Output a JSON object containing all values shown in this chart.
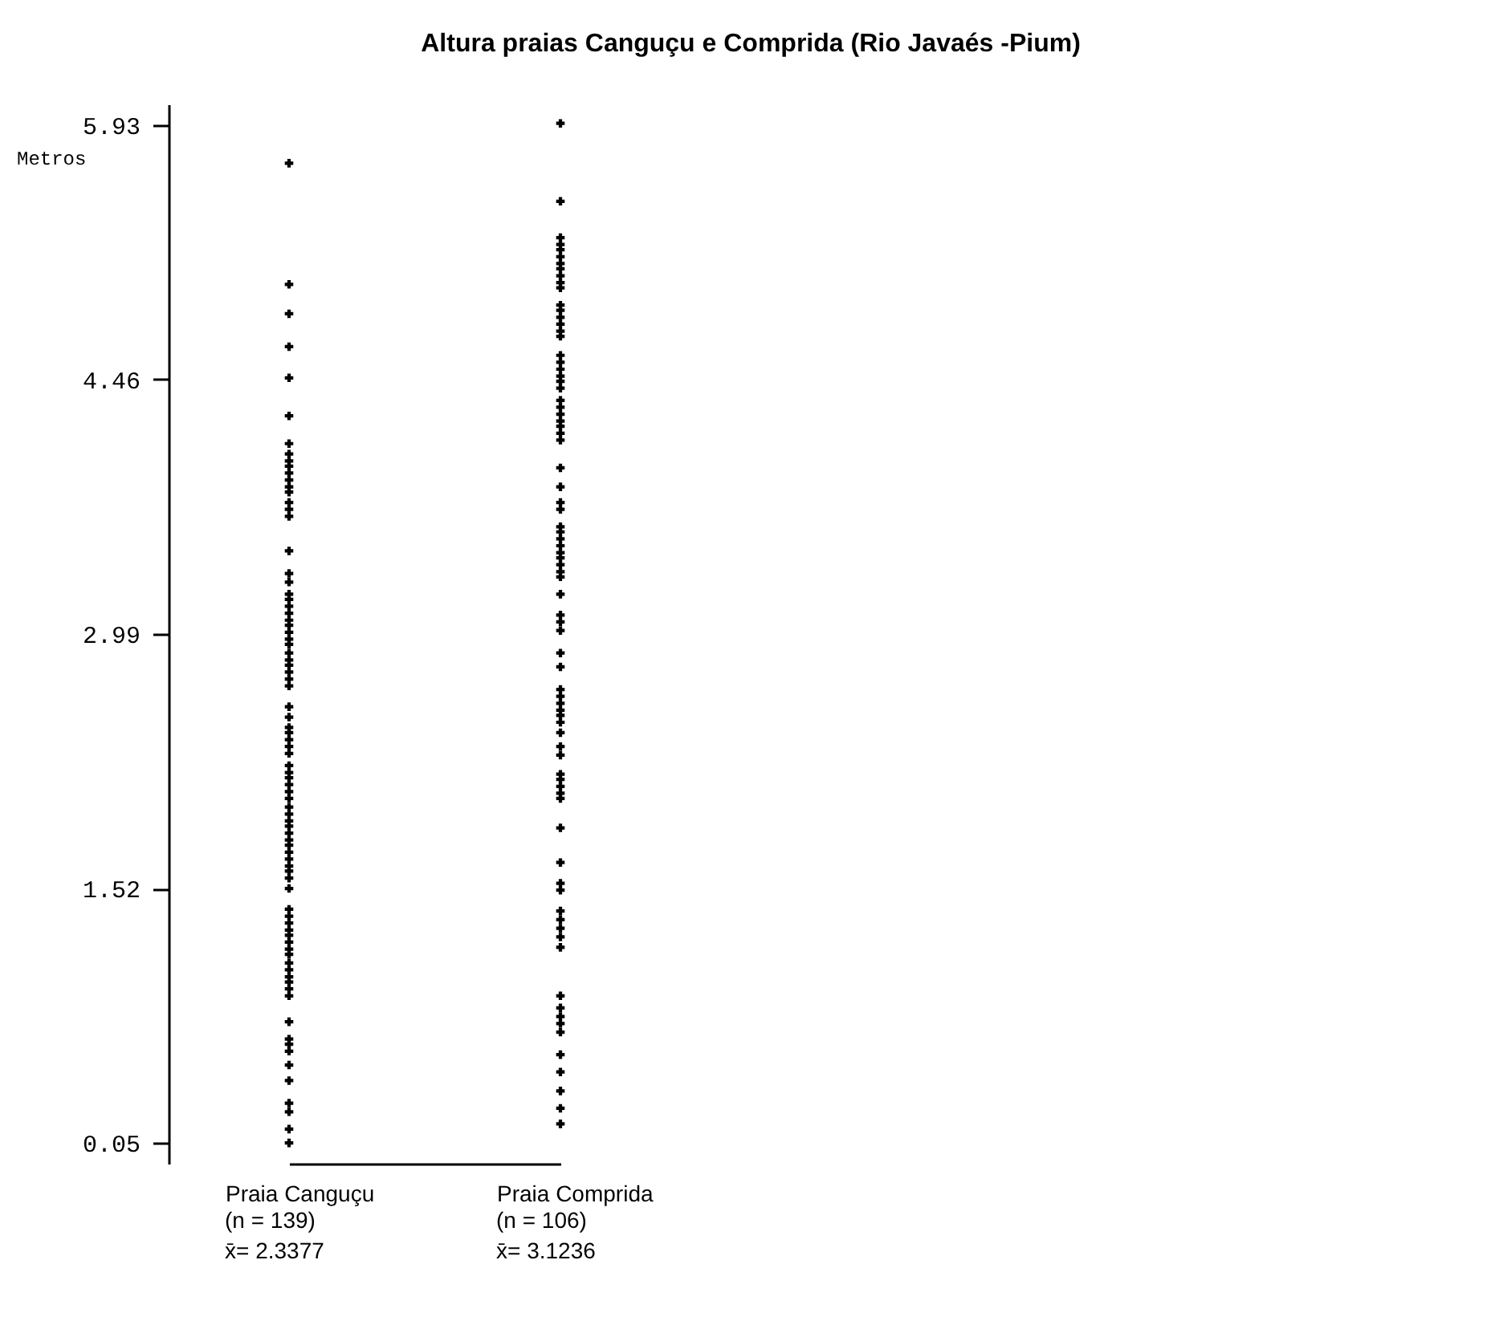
{
  "chart_data": {
    "type": "scatter",
    "title": "Altura praias Canguçu e Comprida (Rio Javaés -Pium)",
    "ylabel": "Metros",
    "categories": [
      "Praia Canguçu",
      "Praia Comprida"
    ],
    "ylim": [
      -0.07,
      6.05
    ],
    "yticks": [
      0.05,
      1.52,
      2.99,
      4.46,
      5.93
    ],
    "marker": "cross",
    "annotations": [
      "(n = 139)\nx̄= 2.3377",
      "(n = 106)\nx̄= 3.1236"
    ],
    "series": [
      {
        "color": "#000000",
        "x": [
          "Praia Canguçu",
          "Praia Canguçu",
          "Praia Canguçu",
          "Praia Canguçu",
          "Praia Canguçu",
          "Praia Canguçu",
          "Praia Canguçu",
          "Praia Canguçu",
          "Praia Canguçu",
          "Praia Canguçu",
          "Praia Canguçu",
          "Praia Canguçu",
          "Praia Canguçu",
          "Praia Canguçu",
          "Praia Canguçu",
          "Praia Canguçu",
          "Praia Canguçu",
          "Praia Canguçu",
          "Praia Canguçu",
          "Praia Canguçu",
          "Praia Canguçu",
          "Praia Canguçu",
          "Praia Canguçu",
          "Praia Canguçu",
          "Praia Canguçu",
          "Praia Canguçu",
          "Praia Canguçu",
          "Praia Canguçu",
          "Praia Canguçu",
          "Praia Canguçu",
          "Praia Canguçu",
          "Praia Canguçu",
          "Praia Canguçu",
          "Praia Canguçu",
          "Praia Canguçu",
          "Praia Canguçu",
          "Praia Canguçu",
          "Praia Canguçu",
          "Praia Canguçu",
          "Praia Canguçu",
          "Praia Canguçu",
          "Praia Canguçu",
          "Praia Canguçu",
          "Praia Canguçu",
          "Praia Canguçu",
          "Praia Canguçu",
          "Praia Canguçu",
          "Praia Canguçu",
          "Praia Canguçu",
          "Praia Canguçu",
          "Praia Canguçu",
          "Praia Canguçu",
          "Praia Canguçu",
          "Praia Canguçu",
          "Praia Canguçu",
          "Praia Canguçu",
          "Praia Canguçu",
          "Praia Canguçu",
          "Praia Canguçu",
          "Praia Canguçu",
          "Praia Canguçu",
          "Praia Canguçu",
          "Praia Canguçu",
          "Praia Canguçu",
          "Praia Canguçu",
          "Praia Canguçu",
          "Praia Canguçu",
          "Praia Canguçu",
          "Praia Canguçu",
          "Praia Canguçu",
          "Praia Canguçu",
          "Praia Canguçu",
          "Praia Canguçu",
          "Praia Canguçu",
          "Praia Canguçu",
          "Praia Canguçu",
          "Praia Canguçu",
          "Praia Canguçu",
          "Praia Canguçu",
          "Praia Canguçu",
          "Praia Canguçu",
          "Praia Canguçu",
          "Praia Canguçu",
          "Praia Canguçu",
          "Praia Canguçu"
        ],
        "values": [
          5.71,
          5.01,
          4.84,
          4.65,
          4.47,
          4.25,
          4.09,
          4.03,
          3.99,
          3.96,
          3.92,
          3.88,
          3.84,
          3.81,
          3.75,
          3.71,
          3.67,
          3.47,
          3.34,
          3.29,
          3.22,
          3.19,
          3.15,
          3.11,
          3.07,
          3.04,
          3.0,
          2.96,
          2.93,
          2.88,
          2.84,
          2.81,
          2.77,
          2.73,
          2.69,
          2.57,
          2.51,
          2.45,
          2.42,
          2.38,
          2.34,
          2.3,
          2.23,
          2.19,
          2.16,
          2.12,
          2.08,
          2.04,
          1.99,
          1.95,
          1.91,
          1.88,
          1.84,
          1.8,
          1.77,
          1.73,
          1.69,
          1.65,
          1.62,
          1.58,
          1.52,
          1.4,
          1.36,
          1.32,
          1.28,
          1.25,
          1.21,
          1.17,
          1.14,
          1.09,
          1.05,
          1.01,
          0.98,
          0.94,
          0.9,
          0.75,
          0.65,
          0.62,
          0.58,
          0.5,
          0.41,
          0.28,
          0.23,
          0.13,
          0.05
        ]
      },
      {
        "color": "#000000",
        "x": [
          "Praia Comprida",
          "Praia Comprida",
          "Praia Comprida",
          "Praia Comprida",
          "Praia Comprida",
          "Praia Comprida",
          "Praia Comprida",
          "Praia Comprida",
          "Praia Comprida",
          "Praia Comprida",
          "Praia Comprida",
          "Praia Comprida",
          "Praia Comprida",
          "Praia Comprida",
          "Praia Comprida",
          "Praia Comprida",
          "Praia Comprida",
          "Praia Comprida",
          "Praia Comprida",
          "Praia Comprida",
          "Praia Comprida",
          "Praia Comprida",
          "Praia Comprida",
          "Praia Comprida",
          "Praia Comprida",
          "Praia Comprida",
          "Praia Comprida",
          "Praia Comprida",
          "Praia Comprida",
          "Praia Comprida",
          "Praia Comprida",
          "Praia Comprida",
          "Praia Comprida",
          "Praia Comprida",
          "Praia Comprida",
          "Praia Comprida",
          "Praia Comprida",
          "Praia Comprida",
          "Praia Comprida",
          "Praia Comprida",
          "Praia Comprida",
          "Praia Comprida",
          "Praia Comprida",
          "Praia Comprida",
          "Praia Comprida",
          "Praia Comprida",
          "Praia Comprida",
          "Praia Comprida",
          "Praia Comprida",
          "Praia Comprida",
          "Praia Comprida",
          "Praia Comprida",
          "Praia Comprida",
          "Praia Comprida",
          "Praia Comprida",
          "Praia Comprida",
          "Praia Comprida",
          "Praia Comprida",
          "Praia Comprida",
          "Praia Comprida",
          "Praia Comprida",
          "Praia Comprida",
          "Praia Comprida",
          "Praia Comprida",
          "Praia Comprida",
          "Praia Comprida",
          "Praia Comprida",
          "Praia Comprida",
          "Praia Comprida",
          "Praia Comprida",
          "Praia Comprida",
          "Praia Comprida",
          "Praia Comprida",
          "Praia Comprida",
          "Praia Comprida",
          "Praia Comprida",
          "Praia Comprida",
          "Praia Comprida",
          "Praia Comprida",
          "Praia Comprida",
          "Praia Comprida",
          "Praia Comprida"
        ],
        "values": [
          5.94,
          5.49,
          5.28,
          5.24,
          5.21,
          5.17,
          5.13,
          5.1,
          5.06,
          5.02,
          4.99,
          4.89,
          4.86,
          4.82,
          4.78,
          4.74,
          4.71,
          4.6,
          4.56,
          4.52,
          4.48,
          4.45,
          4.41,
          4.34,
          4.3,
          4.26,
          4.22,
          4.19,
          4.15,
          4.11,
          3.95,
          3.84,
          3.75,
          3.71,
          3.61,
          3.58,
          3.54,
          3.5,
          3.46,
          3.43,
          3.39,
          3.35,
          3.32,
          3.22,
          3.1,
          3.06,
          3.01,
          2.88,
          2.8,
          2.67,
          2.63,
          2.59,
          2.55,
          2.52,
          2.48,
          2.42,
          2.34,
          2.29,
          2.18,
          2.15,
          2.11,
          2.07,
          2.04,
          1.87,
          1.67,
          1.55,
          1.51,
          1.39,
          1.34,
          1.29,
          1.24,
          1.18,
          0.9,
          0.83,
          0.78,
          0.74,
          0.69,
          0.56,
          0.46,
          0.35,
          0.25,
          0.16
        ]
      }
    ]
  }
}
